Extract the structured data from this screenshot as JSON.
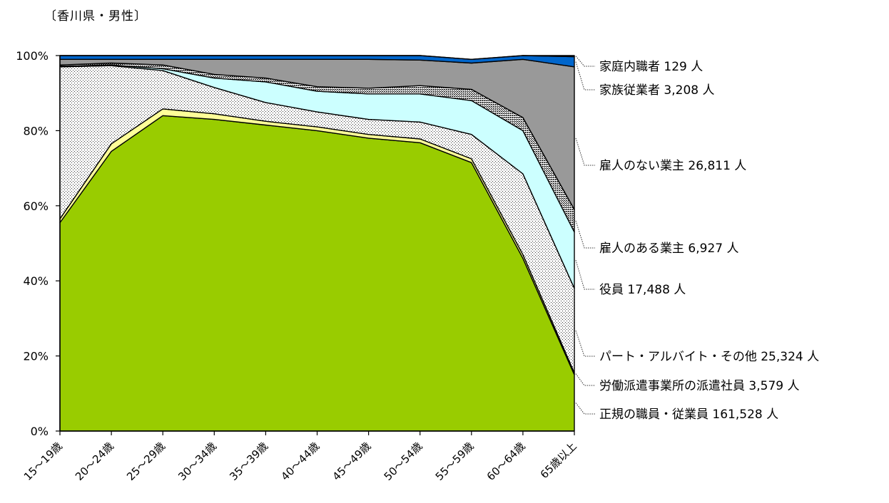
{
  "chart_data": {
    "type": "area",
    "stacked": true,
    "percent": true,
    "title": "〔香川県・男性〕",
    "xlabel": "",
    "ylabel": "",
    "ylim": [
      0,
      100
    ],
    "y_ticks": [
      "0%",
      "20%",
      "40%",
      "60%",
      "80%",
      "100%"
    ],
    "categories": [
      "15～19歳",
      "20～24歳",
      "25～29歳",
      "30～34歳",
      "35～39歳",
      "40～44歳",
      "45～49歳",
      "50～54歳",
      "55～59歳",
      "60～64歳",
      "65歳以上"
    ],
    "series": [
      {
        "name": "正規の職員・従業員",
        "label": "正規の職員・従業員 161,528 人",
        "color": "#99cc00",
        "pattern": "solid",
        "values": [
          55.5,
          74.5,
          84.0,
          83.0,
          81.5,
          80.0,
          78.0,
          76.8,
          71.5,
          46.0,
          15.0
        ]
      },
      {
        "name": "労働派遣事業所の派遣社員",
        "label": "労働派遣事業所の派遣社員 3,579 人",
        "color": "#ffff99",
        "pattern": "solid",
        "values": [
          1.0,
          2.0,
          1.8,
          1.5,
          1.0,
          1.0,
          1.0,
          1.0,
          1.0,
          1.0,
          0.5
        ]
      },
      {
        "name": "パート・アルバイト・その他",
        "label": "パート・アルバイト・その他 25,324 人",
        "color": "#ffffff",
        "pattern": "dots",
        "values": [
          40.5,
          20.8,
          10.2,
          7.0,
          5.0,
          4.0,
          4.0,
          4.5,
          6.5,
          21.5,
          22.5
        ]
      },
      {
        "name": "役員",
        "label": "役員 17,488 人",
        "color": "#ccffff",
        "pattern": "solid",
        "values": [
          0.2,
          0.2,
          0.5,
          2.5,
          5.5,
          5.5,
          6.8,
          7.5,
          9.0,
          11.5,
          15.0
        ]
      },
      {
        "name": "雇人のある業主",
        "label": "雇人のある業主 6,927 人",
        "color": "#888888",
        "pattern": "dense",
        "values": [
          0.3,
          0.5,
          1.0,
          1.0,
          1.0,
          1.2,
          1.5,
          2.2,
          3.0,
          3.5,
          6.0
        ]
      },
      {
        "name": "雇人のない業主",
        "label": "雇人のない業主 26,811 人",
        "color": "#999999",
        "pattern": "solid",
        "values": [
          1.5,
          1.0,
          1.5,
          4.0,
          5.0,
          7.3,
          7.7,
          6.8,
          7.0,
          15.5,
          38.0
        ]
      },
      {
        "name": "家族従業者",
        "label": "家族従業者 3,208 人",
        "color": "#0066cc",
        "pattern": "solid",
        "values": [
          1.0,
          1.0,
          1.0,
          1.0,
          1.0,
          1.0,
          1.0,
          1.2,
          1.0,
          1.0,
          2.7
        ]
      },
      {
        "name": "家庭内職者",
        "label": "家庭内職者 129 人",
        "color": "#3366ff",
        "pattern": "solid",
        "values": [
          0.0,
          0.0,
          0.0,
          0.0,
          0.0,
          0.0,
          0.0,
          0.0,
          0.0,
          0.0,
          0.3
        ]
      }
    ],
    "legend_placement": "right",
    "grid": false
  }
}
